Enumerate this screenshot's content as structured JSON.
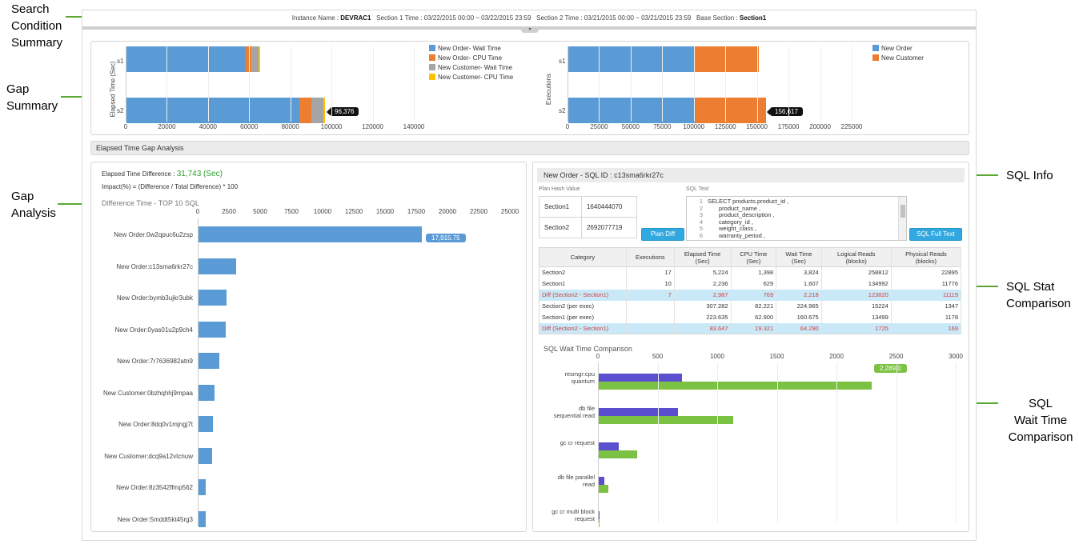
{
  "annotations": {
    "search": "Search\nCondition\nSummary",
    "gap_summary": "Gap\nSummary",
    "gap_analysis": "Gap\nAnalysis",
    "sql_info": "SQL Info",
    "sql_stat": "SQL Stat\nComparison",
    "sql_wait": "SQL\nWait Time\nComparison"
  },
  "search": {
    "instance_label": "Instance Name :",
    "instance_value": "DEVRAC1",
    "section1": "Section 1 Time : 03/22/2015 00:00  ~  03/22/2015 23:59",
    "section2": "Section 2 Time : 03/21/2015 00:00  ~  03/21/2015 23:59",
    "base_label": "Base Section :",
    "base_value": "Section1"
  },
  "colors": {
    "blue": "#5b9bd5",
    "orange": "#ed7d31",
    "gray": "#a5a5a5",
    "yellow": "#ffc000",
    "purple": "#5a4fcf",
    "green": "#7cc242",
    "accent": "#31a8e0"
  },
  "elapsed_chart": {
    "ylabel": "Elapsed Time (Sec)",
    "categories": [
      "s1",
      "s2"
    ],
    "ticks": [
      "0",
      "20000",
      "40000",
      "60000",
      "80000",
      "100000",
      "120000",
      "140000"
    ],
    "legend": [
      "New Order- Wait Time",
      "New Order- CPU Time",
      "New Customer- Wait Time",
      "New Customer- CPU Time"
    ],
    "tooltip": "96,376"
  },
  "exec_chart": {
    "ylabel": "Executions",
    "categories": [
      "s1",
      "s2"
    ],
    "ticks": [
      "0",
      "25000",
      "50000",
      "75000",
      "100000",
      "125000",
      "150000",
      "175000",
      "200000",
      "225000"
    ],
    "legend": [
      "New Order",
      "New Customer"
    ],
    "tooltip": "156,617"
  },
  "section_title": "Elapsed Time Gap Analysis",
  "gap": {
    "diff_label": "Elapsed Time Difference :",
    "diff_value": "31,743 (Sec)",
    "impact": "Impact(%) = (Difference / Total Difference) * 100",
    "chart_title": "Difference Time - TOP 10 SQL",
    "ticks": [
      "0",
      "2500",
      "5000",
      "7500",
      "10000",
      "12500",
      "15000",
      "17500",
      "20000",
      "22500",
      "25000"
    ],
    "tooltip": "17,915.75",
    "labels": [
      "New Order:0w2qpuc6u2zsp",
      "New Order:c13sma6rkr27c",
      "New Order:bymb3ujkr3ubk",
      "New Order:0yas01u2p9ch4",
      "New Order:7r7636982atn9",
      "New Customer:0bzhqhhj9mpaa",
      "New Order:8dq0v1mjngj7t",
      "New Customer:dcq9a12vtcnuw",
      "New Order:8z3542ffmp562",
      "New Order:5mddt5kt45rg3"
    ]
  },
  "sql": {
    "title": "New Order - SQL ID : c13sma6rkr27c",
    "plan_label": "Plan Hash Value",
    "sqltext_label": "SQL Text",
    "plans": [
      {
        "section": "Section1",
        "value": "1640444070"
      },
      {
        "section": "Section2",
        "value": "2692077719"
      }
    ],
    "plan_diff_button": "Plan Diff",
    "full_text_button": "SQL Full Text",
    "lines": [
      {
        "n": "1",
        "text": "SELECT products.product_id ,"
      },
      {
        "n": "2",
        "text": "product_name ,"
      },
      {
        "n": "3",
        "text": "product_description ,"
      },
      {
        "n": "4",
        "text": "category_id ,"
      },
      {
        "n": "5",
        "text": "weight_class ,"
      },
      {
        "n": "6",
        "text": "warranty_period ,"
      }
    ]
  },
  "stat": {
    "headers": [
      "Category",
      "Executions",
      "Elapsed Time\n(Sec)",
      "CPU Time\n(Sec)",
      "Wait Time\n(Sec)",
      "Logical Reads\n(blocks)",
      "Physical Reads\n(blocks)"
    ],
    "rows": [
      [
        "Section2",
        "17",
        "5,224",
        "1,398",
        "3,824",
        "258812",
        "22895"
      ],
      [
        "Section1",
        "10",
        "2,236",
        "629",
        "1,607",
        "134992",
        "11776"
      ],
      [
        "Diff (Section2 - Section1)",
        "7",
        "2,987",
        "769",
        "2,218",
        "123820",
        "11119"
      ],
      [
        "Section2 (per exec)",
        "",
        "307.282",
        "82.221",
        "224.965",
        "15224",
        "1347"
      ],
      [
        "Section1 (per exec)",
        "",
        "223.635",
        "62.900",
        "160.675",
        "13499",
        "1178"
      ],
      [
        "Diff (Section2 - Section1)",
        "",
        "83.647",
        "19.321",
        "64.290",
        "1725",
        "169"
      ]
    ]
  },
  "wait": {
    "title": "SQL Wait Time Comparison",
    "ticks": [
      "0",
      "500",
      "1000",
      "1500",
      "2000",
      "2500",
      "3000"
    ],
    "categories": [
      "resmgr:cpu\nquantum",
      "db file\nsequential read",
      "gc cr request",
      "db file parallel\nread",
      "gc cr multi block\nrequest"
    ],
    "tooltip": "2,289.0"
  },
  "chart_data": [
    {
      "type": "bar",
      "orientation": "horizontal",
      "stacked": true,
      "ylabel": "Elapsed Time (Sec)",
      "categories": [
        "s1",
        "s2"
      ],
      "xlim": [
        0,
        140000
      ],
      "series": [
        {
          "name": "New Order- Wait Time",
          "values": [
            58000,
            84000
          ]
        },
        {
          "name": "New Order- CPU Time",
          "values": [
            2500,
            6000
          ]
        },
        {
          "name": "New Customer- Wait Time",
          "values": [
            3500,
            5500
          ]
        },
        {
          "name": "New Customer- CPU Time",
          "values": [
            800,
            1000
          ]
        }
      ]
    },
    {
      "type": "bar",
      "orientation": "horizontal",
      "stacked": true,
      "ylabel": "Executions",
      "categories": [
        "s1",
        "s2"
      ],
      "xlim": [
        0,
        225000
      ],
      "series": [
        {
          "name": "New Order",
          "values": [
            100000,
            100500
          ]
        },
        {
          "name": "New Customer",
          "values": [
            51000,
            56117
          ]
        }
      ]
    },
    {
      "type": "bar",
      "orientation": "horizontal",
      "title": "Difference Time - TOP 10 SQL",
      "categories": [
        "New Order:0w2qpuc6u2zsp",
        "New Order:c13sma6rkr27c",
        "New Order:bymb3ujkr3ubk",
        "New Order:0yas01u2p9ch4",
        "New Order:7r7636982atn9",
        "New Customer:0bzhqhhj9mpaa",
        "New Order:8dq0v1mjngj7t",
        "New Customer:dcq9a12vtcnuw",
        "New Order:8z3542ffmp562",
        "New Order:5mddt5kt45rg3"
      ],
      "xlim": [
        0,
        25000
      ],
      "values": [
        17915.75,
        2987,
        2250,
        2150,
        1650,
        1300,
        1150,
        1100,
        580,
        560
      ]
    },
    {
      "type": "bar",
      "orientation": "horizontal",
      "title": "SQL Wait Time Comparison",
      "categories": [
        "resmgr:cpu quantum",
        "db file sequential read",
        "gc cr request",
        "db file parallel read",
        "gc cr multi block request"
      ],
      "xlim": [
        0,
        3000
      ],
      "series": [
        {
          "values": [
            700,
            665,
            170,
            50,
            5
          ]
        },
        {
          "values": [
            2289,
            1125,
            325,
            80,
            5
          ]
        }
      ]
    }
  ]
}
